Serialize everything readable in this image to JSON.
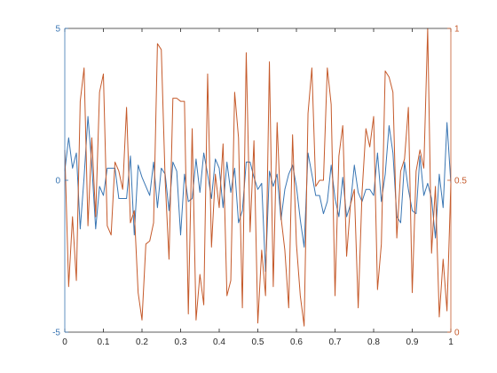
{
  "chart_data": {
    "type": "line",
    "title": "",
    "xlabel": "",
    "xlim": [
      0,
      1
    ],
    "x_ticks": [
      0,
      0.1,
      0.2,
      0.3,
      0.4,
      0.5,
      0.6,
      0.7,
      0.8,
      0.9,
      1
    ],
    "x_tick_labels": [
      "0",
      "0.1",
      "0.2",
      "0.3",
      "0.4",
      "0.5",
      "0.6",
      "0.7",
      "0.8",
      "0.9",
      "1"
    ],
    "grid": false,
    "legend": "none",
    "axes": {
      "left": {
        "ylim": [
          -5,
          5
        ],
        "ticks": [
          -5,
          0,
          5
        ],
        "tick_labels": [
          "-5",
          "0",
          "5"
        ],
        "color": "#3a76b3"
      },
      "right": {
        "ylim": [
          0,
          1
        ],
        "ticks": [
          0,
          0.5,
          1
        ],
        "tick_labels": [
          "0",
          "0.5",
          "1"
        ],
        "color": "#c55a2b"
      }
    },
    "series": [
      {
        "axis": "left",
        "color": "#3a76b3",
        "x": [
          0,
          0.01,
          0.02,
          0.03,
          0.04,
          0.05,
          0.06,
          0.07,
          0.08,
          0.09,
          0.1,
          0.11,
          0.12,
          0.13,
          0.14,
          0.15,
          0.16,
          0.17,
          0.18,
          0.19,
          0.2,
          0.21,
          0.22,
          0.23,
          0.24,
          0.25,
          0.26,
          0.27,
          0.28,
          0.29,
          0.3,
          0.31,
          0.32,
          0.33,
          0.34,
          0.35,
          0.36,
          0.37,
          0.38,
          0.39,
          0.4,
          0.41,
          0.42,
          0.43,
          0.44,
          0.45,
          0.46,
          0.47,
          0.48,
          0.49,
          0.5,
          0.51,
          0.52,
          0.53,
          0.54,
          0.55,
          0.56,
          0.57,
          0.58,
          0.59,
          0.6,
          0.61,
          0.62,
          0.63,
          0.64,
          0.65,
          0.66,
          0.67,
          0.68,
          0.69,
          0.7,
          0.71,
          0.72,
          0.73,
          0.74,
          0.75,
          0.76,
          0.77,
          0.78,
          0.79,
          0.8,
          0.81,
          0.82,
          0.83,
          0.84,
          0.85,
          0.86,
          0.87,
          0.88,
          0.89,
          0.9,
          0.91,
          0.92,
          0.93,
          0.94,
          0.95,
          0.96,
          0.97,
          0.98,
          0.99,
          1
        ],
        "y": [
          0.3,
          1.4,
          0.4,
          0.9,
          -1.6,
          0.1,
          2.1,
          0.5,
          -1.6,
          -0.2,
          -0.5,
          0.4,
          0.4,
          0.4,
          -0.6,
          -0.6,
          -0.6,
          0.8,
          -1.8,
          0.5,
          0.1,
          -0.2,
          -0.5,
          0.6,
          -0.9,
          0.4,
          0.2,
          -1.0,
          0.6,
          0.3,
          -1.8,
          0.2,
          -0.7,
          -0.6,
          0.7,
          -0.4,
          0.9,
          0.2,
          -0.6,
          0.7,
          0.4,
          -0.9,
          0.6,
          -0.4,
          0.4,
          -1.4,
          -1.0,
          0.6,
          0.6,
          0.1,
          -0.3,
          -0.1,
          -3.0,
          0.3,
          -0.2,
          0.2,
          -1.3,
          -0.3,
          0.2,
          0.5,
          -0.2,
          -1.3,
          -2.2,
          0.9,
          0.2,
          -0.5,
          -0.5,
          -1.1,
          -0.7,
          0.5,
          -0.6,
          -1.2,
          0.1,
          -1.2,
          -0.8,
          0.5,
          -0.4,
          -0.7,
          -0.3,
          -0.3,
          -0.5,
          0.9,
          -0.7,
          0.2,
          1.8,
          0.9,
          -1.2,
          -1.4,
          0.6,
          -0.3,
          -1.0,
          -1.1,
          0.8,
          -0.5,
          -0.1,
          -0.6,
          -1.9,
          0.2,
          -0.9,
          1.9,
          -0.1
        ]
      },
      {
        "axis": "right",
        "color": "#c55a2b",
        "x": [
          0,
          0.01,
          0.02,
          0.03,
          0.04,
          0.05,
          0.06,
          0.07,
          0.08,
          0.09,
          0.1,
          0.11,
          0.12,
          0.13,
          0.14,
          0.15,
          0.16,
          0.17,
          0.18,
          0.19,
          0.2,
          0.21,
          0.22,
          0.23,
          0.24,
          0.25,
          0.26,
          0.27,
          0.28,
          0.29,
          0.3,
          0.31,
          0.32,
          0.33,
          0.34,
          0.35,
          0.36,
          0.37,
          0.38,
          0.39,
          0.4,
          0.41,
          0.42,
          0.43,
          0.44,
          0.45,
          0.46,
          0.47,
          0.48,
          0.49,
          0.5,
          0.51,
          0.52,
          0.53,
          0.54,
          0.55,
          0.56,
          0.57,
          0.58,
          0.59,
          0.6,
          0.61,
          0.62,
          0.63,
          0.64,
          0.65,
          0.66,
          0.67,
          0.68,
          0.69,
          0.7,
          0.71,
          0.72,
          0.73,
          0.74,
          0.75,
          0.76,
          0.77,
          0.78,
          0.79,
          0.8,
          0.81,
          0.82,
          0.83,
          0.84,
          0.85,
          0.86,
          0.87,
          0.88,
          0.89,
          0.9,
          0.91,
          0.92,
          0.93,
          0.94,
          0.95,
          0.96,
          0.97,
          0.98,
          0.99,
          1
        ],
        "y": [
          0.6,
          0.15,
          0.38,
          0.17,
          0.76,
          0.87,
          0.35,
          0.64,
          0.38,
          0.79,
          0.85,
          0.35,
          0.32,
          0.56,
          0.53,
          0.47,
          0.74,
          0.36,
          0.4,
          0.13,
          0.04,
          0.29,
          0.3,
          0.36,
          0.95,
          0.93,
          0.5,
          0.24,
          0.77,
          0.77,
          0.76,
          0.76,
          0.06,
          0.67,
          0.04,
          0.19,
          0.09,
          0.85,
          0.28,
          0.52,
          0.41,
          0.62,
          0.12,
          0.17,
          0.79,
          0.64,
          0.08,
          0.92,
          0.33,
          0.63,
          0.03,
          0.27,
          0.12,
          0.89,
          0.15,
          0.69,
          0.38,
          0.27,
          0.08,
          0.65,
          0.29,
          0.12,
          0.02,
          0.72,
          0.87,
          0.48,
          0.5,
          0.5,
          0.87,
          0.75,
          0.12,
          0.58,
          0.68,
          0.25,
          0.42,
          0.47,
          0.08,
          0.46,
          0.67,
          0.61,
          0.71,
          0.14,
          0.29,
          0.86,
          0.84,
          0.79,
          0.31,
          0.53,
          0.57,
          0.74,
          0.13,
          0.53,
          0.6,
          0.54,
          1.0,
          0.26,
          0.48,
          0.05,
          0.24,
          0.07,
          0.49
        ]
      }
    ]
  }
}
